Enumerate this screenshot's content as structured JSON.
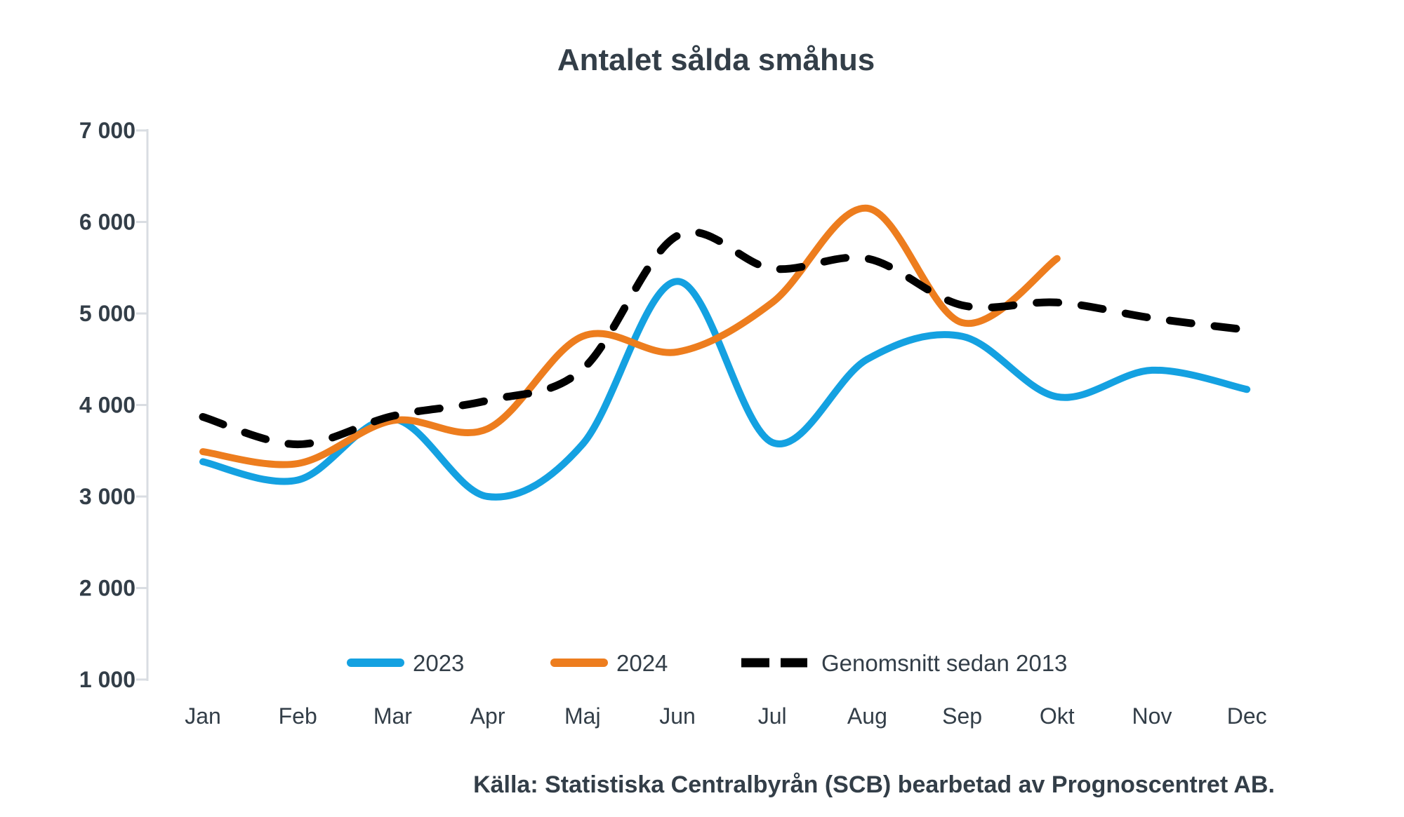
{
  "chart_data": {
    "type": "line",
    "title": "Antalet sålda småhus",
    "source": "Källa: Statistiska Centralbyrån (SCB) bearbetad av Prognoscentret AB.",
    "categories": [
      "Jan",
      "Feb",
      "Mar",
      "Apr",
      "Maj",
      "Jun",
      "Jul",
      "Aug",
      "Sep",
      "Okt",
      "Nov",
      "Dec"
    ],
    "y_axis": {
      "min": 1000,
      "max": 7000,
      "tick_step": 1000,
      "tick_values": [
        7000,
        6000,
        5000,
        4000,
        3000,
        2000,
        1000
      ],
      "tick_labels": [
        "7 000",
        "6 000",
        "5 000",
        "4 000",
        "3 000",
        "2 000",
        "1 000"
      ]
    },
    "grid": false,
    "legend_position": "bottom",
    "series": [
      {
        "name": "2023",
        "style": "solid",
        "color": "#14A1E1",
        "values": [
          3380,
          3180,
          3850,
          3000,
          3570,
          5350,
          3590,
          4500,
          4750,
          4090,
          4380,
          4170
        ]
      },
      {
        "name": "2024",
        "style": "solid",
        "color": "#ED7D1E",
        "values": [
          3490,
          3360,
          3830,
          3740,
          4750,
          4580,
          5120,
          6150,
          4900,
          5600
        ]
      },
      {
        "name": "Genomsnitt sedan 2013",
        "style": "dashed",
        "color": "#000000",
        "values": [
          3870,
          3570,
          3880,
          4050,
          4390,
          5850,
          5490,
          5600,
          5090,
          5120,
          4950,
          4820
        ]
      }
    ],
    "colors": {
      "text": "#333E48",
      "axis": "#D9DDE2"
    }
  }
}
